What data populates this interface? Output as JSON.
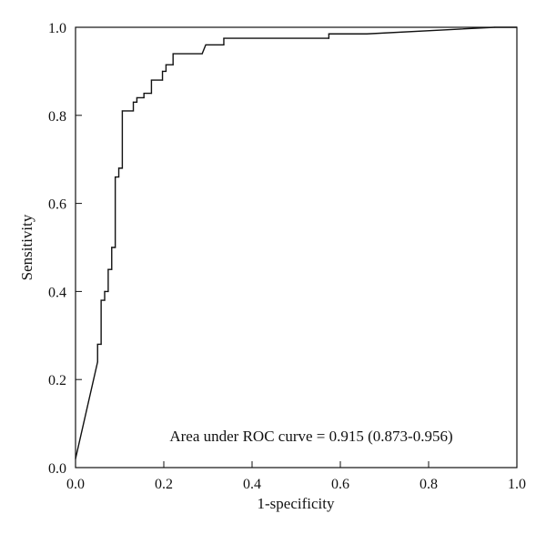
{
  "chart_data": {
    "type": "line",
    "title": "",
    "xlabel": "1-specificity",
    "ylabel": "Sensitivity",
    "xlim": [
      0,
      1
    ],
    "ylim": [
      0,
      1
    ],
    "x_ticks": [
      "0.0",
      "0.2",
      "0.4",
      "0.6",
      "0.8",
      "1.0"
    ],
    "y_ticks": [
      "0.0",
      "0.2",
      "0.4",
      "0.6",
      "0.8",
      "1.0"
    ],
    "grid": false,
    "legend": "none",
    "annotation": "Area under ROC curve = 0.915 (0.873-0.956)",
    "series": [
      {
        "color": "#111111",
        "points": [
          [
            0.0,
            0.02
          ],
          [
            0.05,
            0.24
          ],
          [
            0.05,
            0.28
          ],
          [
            0.058,
            0.28
          ],
          [
            0.058,
            0.38
          ],
          [
            0.066,
            0.38
          ],
          [
            0.066,
            0.4
          ],
          [
            0.074,
            0.4
          ],
          [
            0.074,
            0.45
          ],
          [
            0.082,
            0.45
          ],
          [
            0.082,
            0.5
          ],
          [
            0.09,
            0.5
          ],
          [
            0.09,
            0.66
          ],
          [
            0.098,
            0.66
          ],
          [
            0.098,
            0.68
          ],
          [
            0.106,
            0.68
          ],
          [
            0.106,
            0.81
          ],
          [
            0.131,
            0.81
          ],
          [
            0.131,
            0.83
          ],
          [
            0.139,
            0.83
          ],
          [
            0.139,
            0.84
          ],
          [
            0.155,
            0.84
          ],
          [
            0.155,
            0.85
          ],
          [
            0.172,
            0.85
          ],
          [
            0.172,
            0.88
          ],
          [
            0.197,
            0.88
          ],
          [
            0.197,
            0.9
          ],
          [
            0.205,
            0.9
          ],
          [
            0.205,
            0.915
          ],
          [
            0.221,
            0.915
          ],
          [
            0.221,
            0.94
          ],
          [
            0.287,
            0.94
          ],
          [
            0.295,
            0.96
          ],
          [
            0.336,
            0.96
          ],
          [
            0.336,
            0.975
          ],
          [
            0.574,
            0.975
          ],
          [
            0.574,
            0.985
          ],
          [
            0.66,
            0.985
          ],
          [
            0.95,
            1.0
          ],
          [
            1.0,
            1.0
          ]
        ]
      }
    ]
  }
}
